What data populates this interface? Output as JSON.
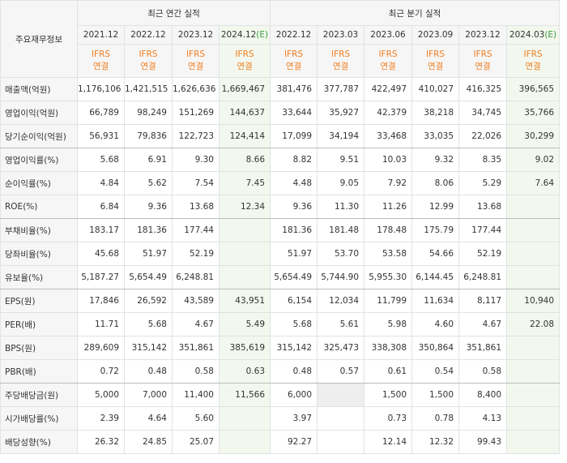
{
  "header": {
    "corner": "주요재무정보",
    "annual": {
      "label": "최근 연간 실적",
      "periods": [
        {
          "label": "2021.12",
          "basis": [
            "IFRS",
            "연결"
          ]
        },
        {
          "label": "2022.12",
          "basis": [
            "IFRS",
            "연결"
          ]
        },
        {
          "label": "2023.12",
          "basis": [
            "IFRS",
            "연결"
          ]
        },
        {
          "label": "2024.12",
          "suffix": "(E)",
          "basis": [
            "IFRS",
            "연결"
          ]
        }
      ]
    },
    "quarterly": {
      "label": "최근 분기 실적",
      "periods": [
        {
          "label": "2022.12",
          "basis": [
            "IFRS",
            "연결"
          ]
        },
        {
          "label": "2023.03",
          "basis": [
            "IFRS",
            "연결"
          ]
        },
        {
          "label": "2023.06",
          "basis": [
            "IFRS",
            "연결"
          ]
        },
        {
          "label": "2023.09",
          "basis": [
            "IFRS",
            "연결"
          ]
        },
        {
          "label": "2023.12",
          "basis": [
            "IFRS",
            "연결"
          ]
        },
        {
          "label": "2024.03",
          "suffix": "(E)",
          "basis": [
            "IFRS",
            "연결"
          ]
        }
      ]
    }
  },
  "table": {
    "rows": [
      {
        "label": "매출액(억원)",
        "values": [
          "1,176,106",
          "1,421,515",
          "1,626,636",
          "1,669,467",
          "381,476",
          "377,787",
          "422,497",
          "410,027",
          "416,325",
          "396,565"
        ]
      },
      {
        "label": "영업이익(억원)",
        "values": [
          "66,789",
          "98,249",
          "151,269",
          "144,637",
          "33,644",
          "35,927",
          "42,379",
          "38,218",
          "34,745",
          "35,766"
        ]
      },
      {
        "label": "당기순이익(억원)",
        "values": [
          "56,931",
          "79,836",
          "122,723",
          "124,414",
          "17,099",
          "34,194",
          "33,468",
          "33,035",
          "22,026",
          "30,299"
        ]
      },
      {
        "label": "영업이익률(%)",
        "values": [
          "5.68",
          "6.91",
          "9.30",
          "8.66",
          "8.82",
          "9.51",
          "10.03",
          "9.32",
          "8.35",
          "9.02"
        ]
      },
      {
        "label": "순이익률(%)",
        "values": [
          "4.84",
          "5.62",
          "7.54",
          "7.45",
          "4.48",
          "9.05",
          "7.92",
          "8.06",
          "5.29",
          "7.64"
        ]
      },
      {
        "label": "ROE(%)",
        "values": [
          "6.84",
          "9.36",
          "13.68",
          "12.34",
          "9.36",
          "11.30",
          "11.26",
          "12.99",
          "13.68",
          null
        ]
      },
      {
        "label": "부채비율(%)",
        "values": [
          "183.17",
          "181.36",
          "177.44",
          null,
          "181.36",
          "181.48",
          "178.48",
          "175.79",
          "177.44",
          null
        ]
      },
      {
        "label": "당좌비율(%)",
        "values": [
          "45.68",
          "51.97",
          "52.19",
          null,
          "51.97",
          "53.70",
          "53.58",
          "54.66",
          "52.19",
          null
        ]
      },
      {
        "label": "유보율(%)",
        "values": [
          "5,187.27",
          "5,654.49",
          "6,248.81",
          null,
          "5,654.49",
          "5,744.90",
          "5,955.30",
          "6,144.45",
          "6,248.81",
          null
        ]
      },
      {
        "label": "EPS(원)",
        "values": [
          "17,846",
          "26,592",
          "43,589",
          "43,951",
          "6,154",
          "12,034",
          "11,799",
          "11,634",
          "8,117",
          "10,940"
        ]
      },
      {
        "label": "PER(배)",
        "values": [
          "11.71",
          "5.68",
          "4.67",
          "5.49",
          "5.68",
          "5.61",
          "5.98",
          "4.60",
          "4.67",
          "22.08"
        ]
      },
      {
        "label": "BPS(원)",
        "values": [
          "289,609",
          "315,142",
          "351,861",
          "385,619",
          "315,142",
          "325,473",
          "338,308",
          "350,864",
          "351,861",
          null
        ]
      },
      {
        "label": "PBR(배)",
        "values": [
          "0.72",
          "0.48",
          "0.58",
          "0.63",
          "0.48",
          "0.57",
          "0.61",
          "0.54",
          "0.58",
          null
        ]
      },
      {
        "label": "주당배당금(원)",
        "values": [
          "5,000",
          "7,000",
          "11,400",
          "11,566",
          "6,000",
          null,
          "1,500",
          "1,500",
          "8,400",
          null
        ]
      },
      {
        "label": "시가배당률(%)",
        "values": [
          "2.39",
          "4.64",
          "5.60",
          null,
          "3.97",
          null,
          "0.73",
          "0.78",
          "4.13",
          null
        ]
      },
      {
        "label": "배당성향(%)",
        "values": [
          "26.32",
          "24.85",
          "25.07",
          null,
          "92.27",
          null,
          "12.14",
          "12.32",
          "99.43",
          null
        ]
      }
    ]
  }
}
